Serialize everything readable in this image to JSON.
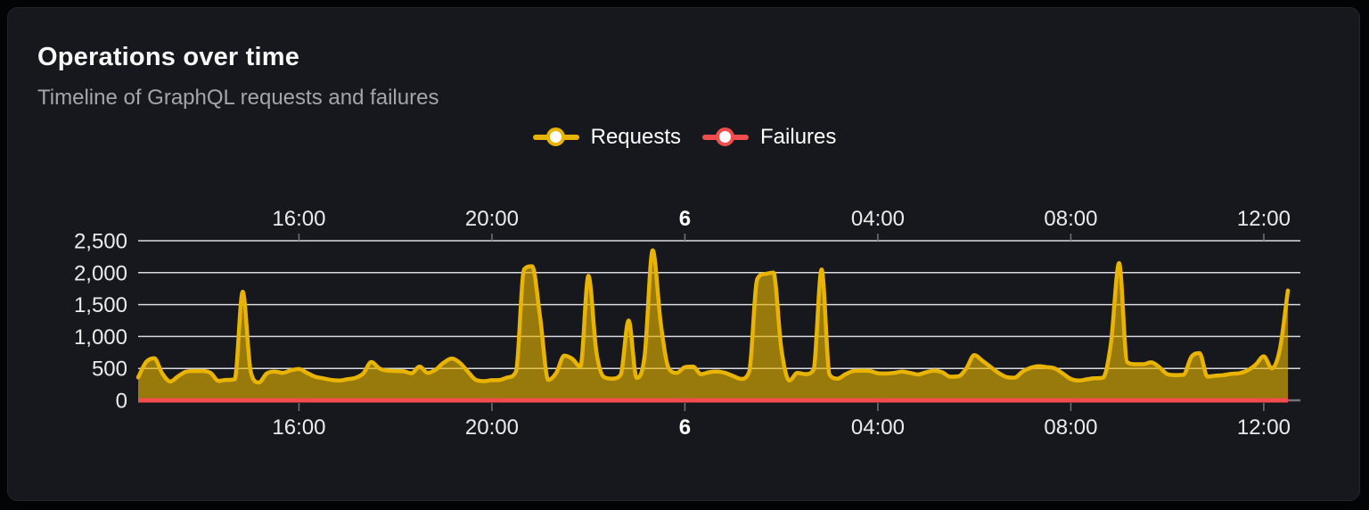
{
  "card": {
    "title": "Operations over time",
    "subtitle": "Timeline of GraphQL requests and failures"
  },
  "legend": [
    {
      "label": "Requests",
      "color": "#e9b400"
    },
    {
      "label": "Failures",
      "color": "#f14d4d"
    }
  ],
  "chart_data": {
    "type": "area",
    "title": "Operations over time",
    "subtitle": "Timeline of GraphQL requests and failures",
    "xlabel": "",
    "ylabel": "",
    "grid": true,
    "legend_position": "top-center",
    "ylim": [
      0,
      2500
    ],
    "y_axis": {
      "ticks": [
        0,
        500,
        1000,
        1500,
        2000,
        2500
      ],
      "tick_labels": [
        "0",
        "500",
        "1,000",
        "1,500",
        "2,000",
        "2,500"
      ]
    },
    "x_axis": {
      "kind": "time",
      "span_hours": 24,
      "start_label": "12:40",
      "point_interval_minutes": 10,
      "tick_labels": [
        "16:00",
        "20:00",
        "6",
        "04:00",
        "08:00",
        "12:00"
      ],
      "tick_indices": [
        20,
        44,
        68,
        92,
        116,
        140
      ],
      "bold_tick_label": "6",
      "note": "labels shown on both top and bottom axes; bold 6 marks midnight start of day 6"
    },
    "series": [
      {
        "name": "Requests",
        "color": "#e9b400",
        "fill": "rgba(233,180,0,0.62)",
        "values": [
          360,
          600,
          660,
          420,
          295,
          380,
          450,
          460,
          460,
          430,
          305,
          320,
          330,
          1700,
          450,
          280,
          420,
          450,
          430,
          470,
          490,
          430,
          370,
          345,
          320,
          310,
          330,
          350,
          420,
          600,
          500,
          465,
          460,
          455,
          425,
          530,
          430,
          480,
          590,
          655,
          590,
          450,
          320,
          300,
          315,
          320,
          360,
          455,
          2050,
          2100,
          1300,
          320,
          430,
          700,
          650,
          530,
          1950,
          750,
          360,
          340,
          400,
          1250,
          350,
          700,
          2350,
          1200,
          500,
          430,
          520,
          530,
          410,
          440,
          450,
          430,
          380,
          335,
          450,
          1900,
          1980,
          2000,
          800,
          310,
          430,
          410,
          480,
          2050,
          400,
          340,
          410,
          460,
          465,
          460,
          425,
          420,
          430,
          450,
          430,
          405,
          440,
          465,
          440,
          370,
          375,
          500,
          710,
          620,
          525,
          430,
          365,
          355,
          450,
          510,
          535,
          520,
          500,
          420,
          335,
          310,
          330,
          345,
          355,
          900,
          2150,
          600,
          565,
          565,
          595,
          520,
          410,
          395,
          400,
          680,
          740,
          370,
          385,
          395,
          415,
          425,
          470,
          560,
          690,
          500,
          800,
          1720
        ]
      },
      {
        "name": "Failures",
        "color": "#f14d4d",
        "constant_value": 0,
        "points": 144
      }
    ],
    "colors": {
      "background": "#16181d",
      "page_background": "#030405",
      "gridline": "#d7dade",
      "tick": "#70747a",
      "requests_line": "#e9b400",
      "failures_line": "#f14d4d"
    }
  }
}
